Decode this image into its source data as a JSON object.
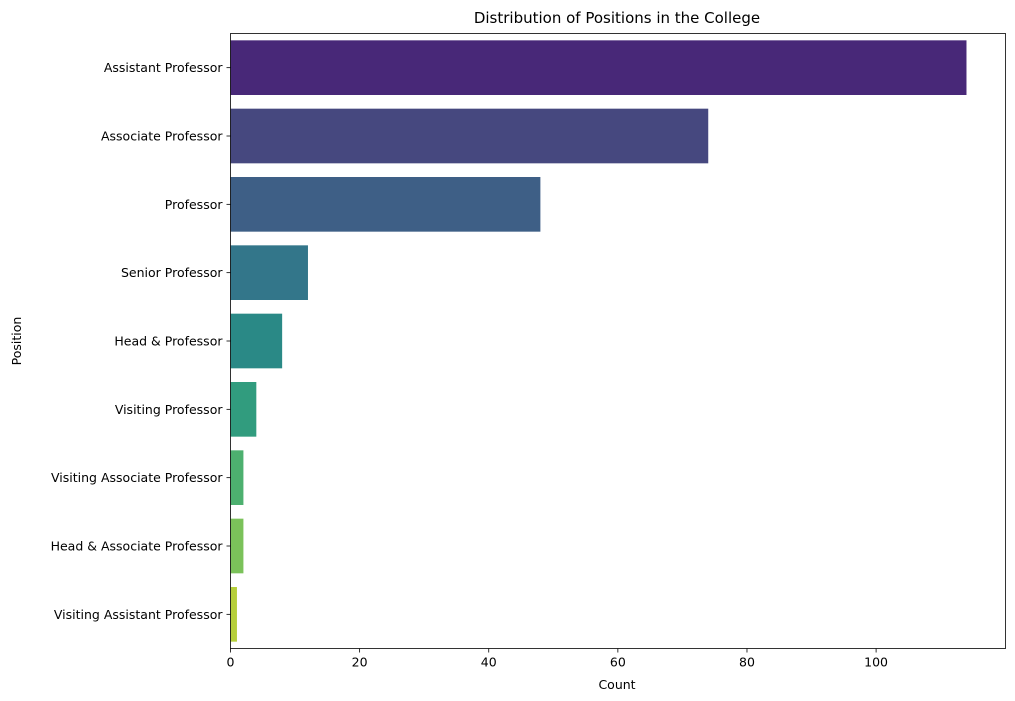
{
  "chart_data": {
    "type": "bar",
    "orientation": "horizontal",
    "title": "Distribution of Positions in the College",
    "xlabel": "Count",
    "ylabel": "Position",
    "xlim": [
      0,
      120
    ],
    "xticks": [
      0,
      20,
      40,
      60,
      80,
      100
    ],
    "grid": false,
    "categories": [
      "Assistant Professor",
      "Associate Professor",
      "Professor",
      "Senior Professor",
      "Head & Professor",
      "Visiting Professor",
      "Visiting Associate Professor",
      "Head & Associate Professor",
      "Visiting Assistant Professor"
    ],
    "values": [
      114,
      74,
      48,
      12,
      8,
      4,
      2,
      2,
      1
    ],
    "colors": [
      "#482878",
      "#46487f",
      "#3e5f86",
      "#33768a",
      "#2a8986",
      "#319c7e",
      "#4db06f",
      "#7bc25a",
      "#b6cf3b"
    ]
  }
}
